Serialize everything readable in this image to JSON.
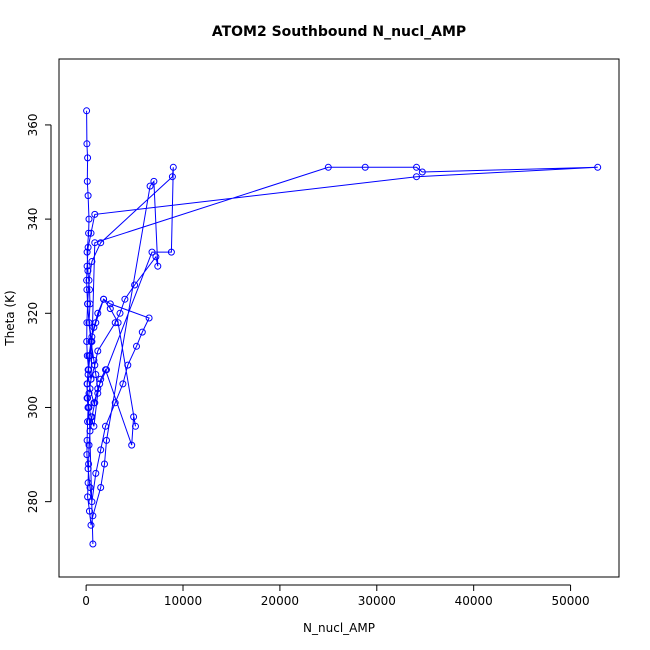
{
  "chart_data": {
    "type": "line",
    "title": "ATOM2 Southbound N_nucl_AMP",
    "xlabel": "N_nucl_AMP",
    "ylabel": "Theta (K)",
    "xlim": [
      -2800,
      55000
    ],
    "ylim": [
      264,
      374
    ],
    "xticks": [
      0,
      10000,
      20000,
      30000,
      40000,
      50000
    ],
    "xtick_labels": [
      "0",
      "10000",
      "20000",
      "30000",
      "40000",
      "50000"
    ],
    "yticks": [
      280,
      300,
      320,
      340,
      360
    ],
    "ytick_labels": [
      "280",
      "300",
      "320",
      "340",
      "360"
    ],
    "grid": false,
    "legend": "none",
    "colors": {
      "series": "#0000ff",
      "axis": "#000000"
    },
    "series": [
      {
        "x": [
          50,
          80,
          150,
          120,
          200,
          300,
          250,
          100,
          180,
          350,
          400,
          300,
          500,
          800,
          1000,
          1200,
          900,
          600,
          400,
          300,
          250,
          200,
          150,
          350,
          500,
          700,
          1500,
          1900,
          2100,
          6600,
          7000,
          7400,
          7200,
          5000,
          4000,
          3500,
          3000,
          1200,
          900,
          500,
          300,
          200,
          150,
          100,
          80,
          200,
          400,
          600,
          1000,
          1500,
          2000,
          3000,
          3800,
          4300,
          5200,
          5800,
          6500,
          2500,
          1800,
          1200,
          800,
          500,
          300,
          200,
          100,
          150,
          300,
          500,
          800,
          1200,
          1500,
          2000,
          4700,
          4900,
          5100,
          3300,
          2500,
          1800,
          1000,
          600,
          300,
          200,
          400,
          800,
          1400,
          2100,
          6800,
          8800,
          9000,
          8900,
          1500,
          600,
          300,
          150,
          80,
          60,
          120,
          250,
          500,
          900,
          25000,
          28800,
          34100,
          34700,
          52800,
          34100,
          900,
          500,
          200,
          100,
          50,
          80,
          150,
          300,
          600,
          400,
          250,
          120,
          100,
          200,
          350,
          700
        ],
        "y": [
          363,
          356,
          353,
          348,
          345,
          340,
          337,
          333,
          329,
          325,
          322,
          318,
          314,
          310,
          307,
          304,
          301,
          298,
          295,
          292,
          288,
          284,
          281,
          278,
          275,
          277,
          283,
          288,
          293,
          347,
          348,
          330,
          332,
          326,
          323,
          320,
          318,
          312,
          309,
          306,
          303,
          300,
          297,
          293,
          290,
          287,
          283,
          280,
          286,
          291,
          296,
          301,
          305,
          309,
          313,
          316,
          319,
          322,
          323,
          320,
          317,
          314,
          311,
          308,
          305,
          302,
          300,
          298,
          296,
          303,
          306,
          308,
          292,
          298,
          296,
          318,
          321,
          323,
          318,
          315,
          311,
          307,
          304,
          301,
          305,
          308,
          333,
          333,
          351,
          349,
          335,
          331,
          327,
          322,
          318,
          314,
          311,
          308,
          306,
          335,
          351,
          351,
          351,
          350,
          351,
          349,
          341,
          337,
          334,
          330,
          327,
          325,
          322,
          318,
          314,
          311,
          308,
          305,
          302,
          300,
          297,
          271
        ]
      }
    ]
  }
}
